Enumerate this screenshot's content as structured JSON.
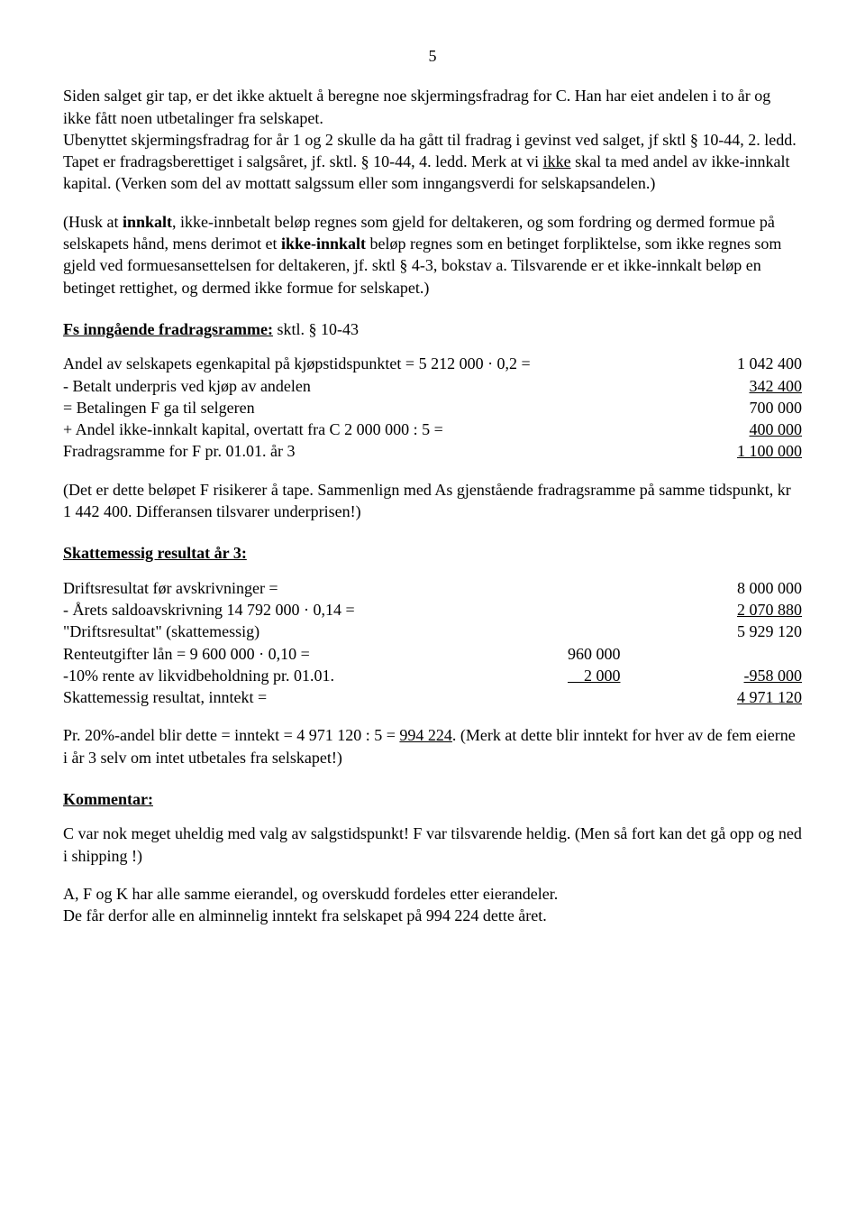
{
  "page_number": "5",
  "para1_a": "Siden salget gir tap, er det ikke aktuelt å beregne noe skjermingsfradrag for C. Han har eiet andelen i to år og ikke fått noen utbetalinger fra selskapet.",
  "para1_b_pre": "Ubenyttet skjermingsfradrag for år 1 og 2 skulle da ha gått til fradrag i gevinst ved salget, jf sktl § 10-44, 2. ledd. Tapet er fradragsberettiget i salgsåret, jf. sktl. § 10-44, 4. ledd. Merk at vi ",
  "para1_b_ikke": "ikke",
  "para1_b_post": " skal ta med andel av ikke-innkalt kapital. (Verken som del av mottatt salgssum eller som inngangsverdi for selskapsandelen.)",
  "para2_a": "(Husk at ",
  "para2_innkalt": "innkalt",
  "para2_b": ", ikke-innbetalt beløp regnes som gjeld for deltakeren, og som fordring og dermed formue på selskapets hånd, mens derimot et ",
  "para2_ikke_innkalt": "ikke-innkalt",
  "para2_c": " beløp regnes som en betinget forpliktelse, som ikke regnes som gjeld ved formuesansettelsen for deltakeren, jf. sktl § 4-3, bokstav a.  Tilsvarende er et ikke-innkalt beløp en betinget rettighet, og dermed ikke formue for selskapet.)",
  "heading_fs": "Fs inngående fradragsramme:",
  "heading_fs_post": " sktl. § 10-43",
  "fs_rows": [
    {
      "label": " Andel av selskapets egenkapital på kjøpstidspunktet = 5 212 000 · 0,2 =",
      "val": "1 042 400",
      "uval": false
    },
    {
      "label": "- Betalt underpris ved kjøp av andelen",
      "val": "342 400",
      "uval": true
    },
    {
      "label": "= Betalingen F ga til selgeren",
      "val": "700 000",
      "uval": false
    },
    {
      "label": "+ Andel ikke-innkalt kapital, overtatt fra C  2 000 000 : 5 =",
      "val": "400 000",
      "uval": true
    },
    {
      "label": " Fradragsramme for F pr. 01.01. år 3",
      "val": "1 100 000",
      "uval": true
    }
  ],
  "para_det_er": "(Det er dette beløpet F risikerer å tape. Sammenlign med As gjenstående fradragsramme på samme tidspunkt, kr 1 442 400. Differansen tilsvarer underprisen!)",
  "heading_skatt": "Skattemessig resultat år 3:",
  "skatt_rows": [
    {
      "label": " Driftsresultat før avskrivninger =",
      "mid": "",
      "val": "8 000 000",
      "uval": false
    },
    {
      "label": "- Årets saldoavskrivning 14 792 000 · 0,14 =",
      "mid": "",
      "val": "2 070 880",
      "uval": true
    },
    {
      "label": " \"Driftsresultat\" (skattemessig)",
      "mid": "",
      "val": "5 929 120",
      "uval": false
    },
    {
      "label": " Renteutgifter lån = 9 600 000 · 0,10 =",
      "mid": "960 000",
      "val": "",
      "uval": false
    },
    {
      "label": "-10% rente av likvidbeholdning pr. 01.01.",
      "mid": "    2 000",
      "midu": true,
      "val": "-958 000",
      "uval": true
    },
    {
      "label": " Skattemessig resultat, inntekt =",
      "mid": "",
      "val": "4 971 120",
      "uval": true
    }
  ],
  "para_pr20_a": "Pr. 20%-andel blir dette = inntekt = 4 971 120 : 5 = ",
  "para_pr20_val": "994 224",
  "para_pr20_b": ". (Merk at dette blir inntekt for hver av de fem eierne i år 3 selv om intet utbetales fra selskapet!)",
  "heading_kommentar": "Kommentar:",
  "para_kommentar": "C var nok meget uheldig med valg av salgstidspunkt! F var tilsvarende heldig. (Men så fort kan det gå opp og ned i shipping !)",
  "para_last_a": "A, F og K har alle samme eierandel, og overskudd fordeles etter eierandeler.",
  "para_last_b": "De får derfor  alle en alminnelig inntekt fra selskapet på 994 224 dette året."
}
